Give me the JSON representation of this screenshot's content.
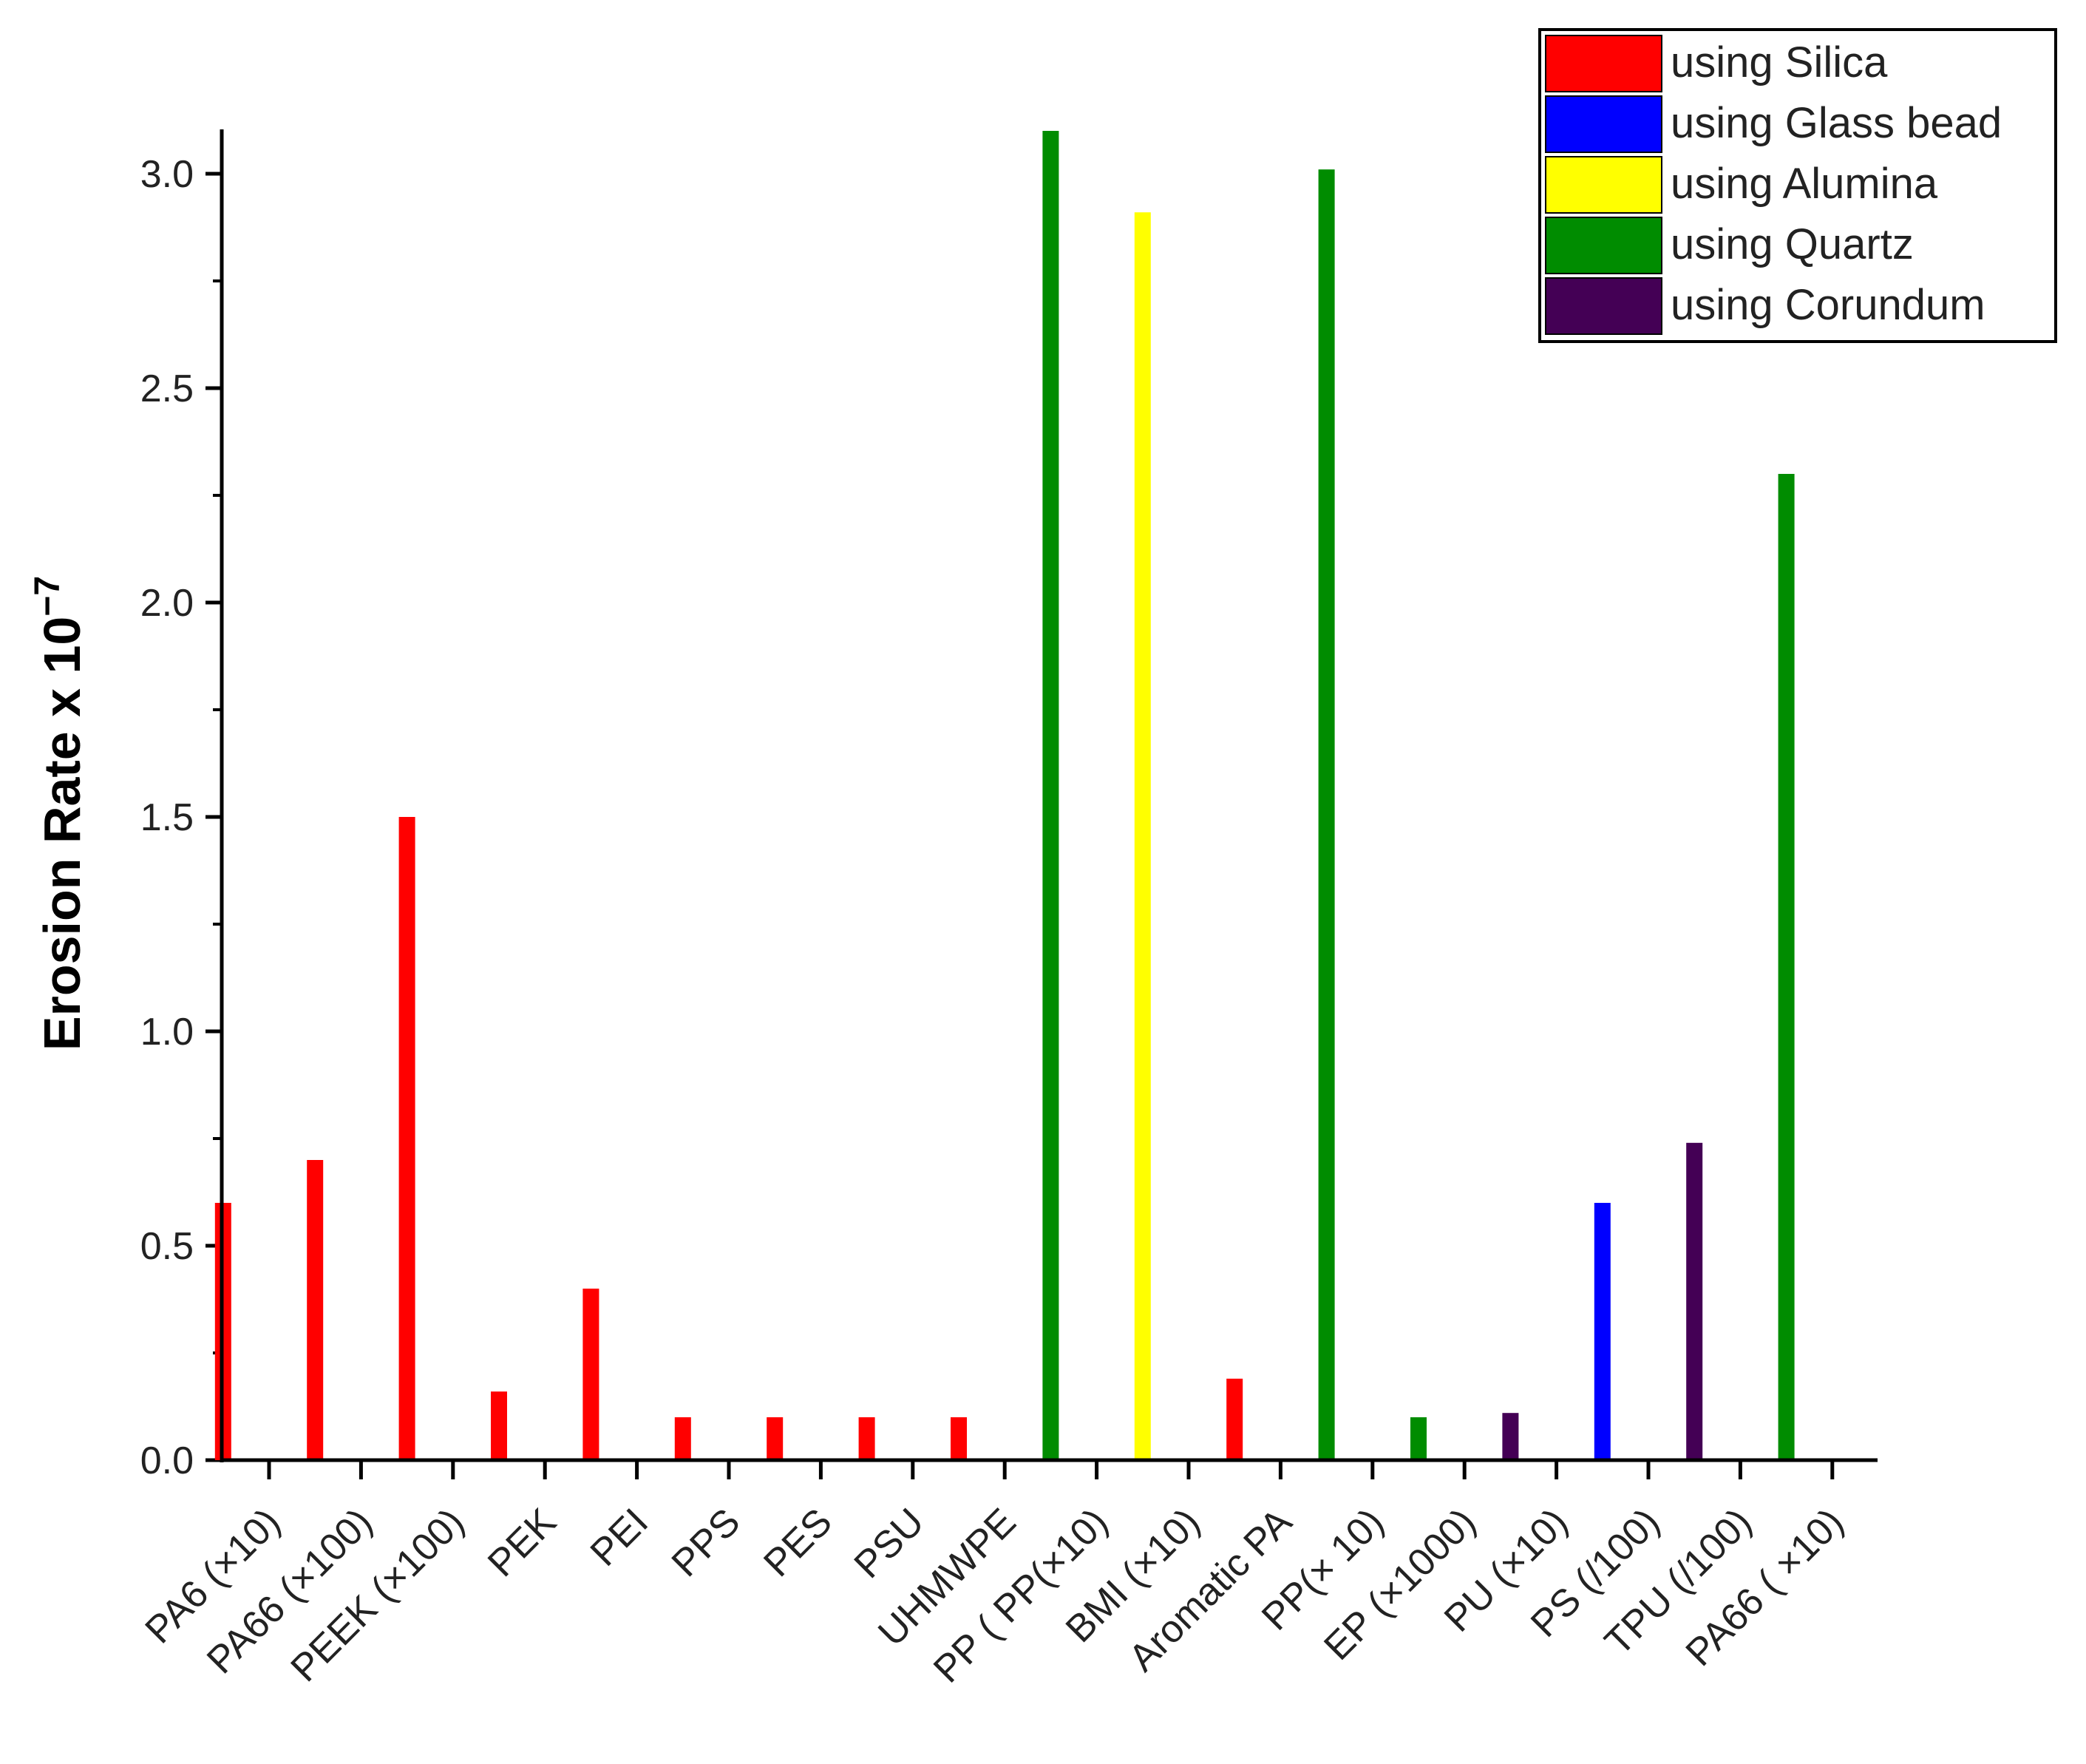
{
  "chart_data": {
    "type": "bar",
    "title": "",
    "xlabel": "",
    "ylabel": "Erosion Rate x 10",
    "ylabel_exponent": "−7",
    "ylim": [
      0,
      3.1
    ],
    "yticks": [
      "0.0",
      "0.5",
      "1.0",
      "1.5",
      "2.0",
      "2.5",
      "3.0"
    ],
    "grid": false,
    "legend_position": "top-right",
    "categories": [
      "PA6 (×10)",
      "PA66 (×100)",
      "PEEK (×100)",
      "PEK",
      "PEI",
      "PPS",
      "PES",
      "PSU",
      "UHMWPE",
      "PP ( PP(×10)",
      "BMI (×10)",
      "Aromatic PA",
      "PP(× 10)",
      "EP (×1000)",
      "PU (×10)",
      "PS (/100)",
      "TPU (/100)",
      "PA66 ( ×10)"
    ],
    "series": [
      {
        "name": "using Silica",
        "color": "#ff0000",
        "values": [
          0.6,
          0.7,
          1.5,
          0.16,
          0.4,
          0.1,
          0.1,
          0.1,
          0.1,
          null,
          null,
          0.19,
          null,
          null,
          null,
          null,
          null,
          null
        ]
      },
      {
        "name": "using Glass bead",
        "color": "#0000ff",
        "values": [
          null,
          null,
          null,
          null,
          null,
          null,
          null,
          null,
          null,
          null,
          null,
          null,
          null,
          null,
          null,
          0.6,
          null,
          null
        ]
      },
      {
        "name": "using Alumina",
        "color": "#ffff00",
        "values": [
          null,
          null,
          null,
          null,
          null,
          null,
          null,
          null,
          null,
          null,
          2.91,
          null,
          null,
          null,
          null,
          null,
          null,
          null
        ]
      },
      {
        "name": "using Quartz",
        "color": "#008c00",
        "values": [
          null,
          null,
          null,
          null,
          null,
          null,
          null,
          null,
          null,
          3.1,
          null,
          null,
          3.01,
          0.1,
          null,
          null,
          null,
          2.3
        ]
      },
      {
        "name": "using Corundum",
        "color": "#440055",
        "values": [
          null,
          null,
          null,
          null,
          null,
          null,
          null,
          null,
          null,
          null,
          null,
          null,
          null,
          null,
          0.11,
          null,
          0.74,
          null
        ]
      }
    ]
  }
}
